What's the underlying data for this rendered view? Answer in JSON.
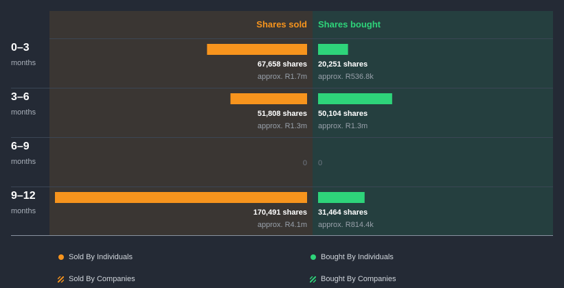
{
  "colors": {
    "sold": "#f7941d",
    "bought": "#2ed47a"
  },
  "chart_data": {
    "type": "bar",
    "orientation": "horizontal-diverging",
    "headers": {
      "sold": "Shares sold",
      "bought": "Shares bought"
    },
    "categories": [
      {
        "label": "0–3",
        "sub": "months"
      },
      {
        "label": "3–6",
        "sub": "months"
      },
      {
        "label": "6–9",
        "sub": "months"
      },
      {
        "label": "9–12",
        "sub": "months"
      }
    ],
    "series": [
      {
        "name": "Shares sold",
        "values": [
          67658,
          51808,
          0,
          170491
        ],
        "value_labels": [
          "67,658 shares",
          "51,808 shares",
          "0",
          "170,491 shares"
        ],
        "approx_labels": [
          "approx. R1.7m",
          "approx. R1.3m",
          "",
          "approx. R4.1m"
        ]
      },
      {
        "name": "Shares bought",
        "values": [
          20251,
          50104,
          0,
          31464
        ],
        "value_labels": [
          "20,251 shares",
          "50,104 shares",
          "0",
          "31,464 shares"
        ],
        "approx_labels": [
          "approx. R536.8k",
          "approx. R1.3m",
          "",
          "approx. R814.4k"
        ]
      }
    ],
    "legend": [
      "Sold By Individuals",
      "Bought By Individuals",
      "Sold By Companies",
      "Bought By Companies"
    ]
  }
}
